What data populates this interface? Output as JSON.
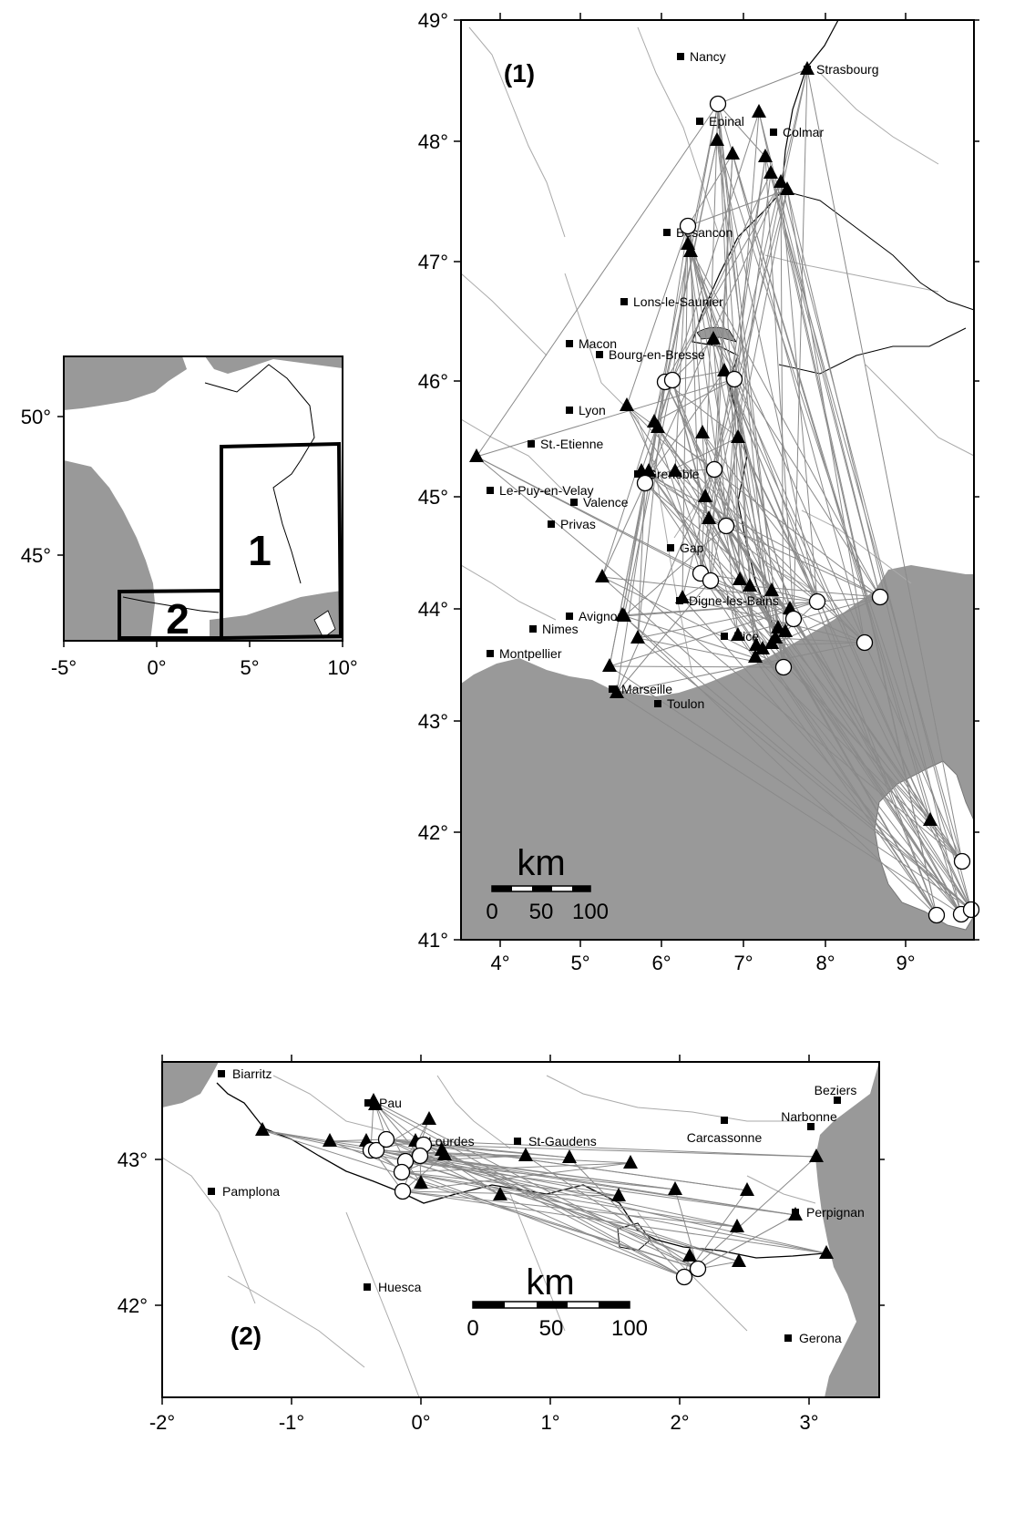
{
  "overview": {
    "lon_ticks": [
      "-5°",
      "0°",
      "5°",
      "10°"
    ],
    "lat_ticks": [
      "50°",
      "45°"
    ],
    "box1_label": "1",
    "box2_label": "2"
  },
  "panel1": {
    "label": "(1)",
    "lon_ticks": [
      "4°",
      "5°",
      "6°",
      "7°",
      "8°",
      "9°"
    ],
    "lat_ticks": [
      "49°",
      "48°",
      "47°",
      "46°",
      "45°",
      "44°",
      "43°",
      "42°",
      "41°"
    ],
    "scale": {
      "unit": "km",
      "ticks": [
        "0",
        "50",
        "100"
      ]
    },
    "cities": [
      {
        "name": "Nancy"
      },
      {
        "name": "Strasbourg"
      },
      {
        "name": "Epinal"
      },
      {
        "name": "Colmar"
      },
      {
        "name": "Besancon"
      },
      {
        "name": "Lons-le-Saunier"
      },
      {
        "name": "Macon"
      },
      {
        "name": "Bourg-en-Bresse"
      },
      {
        "name": "Lyon"
      },
      {
        "name": "St.-Etienne"
      },
      {
        "name": "Le-Puy-en-Velay"
      },
      {
        "name": "Valence"
      },
      {
        "name": "Grenoble"
      },
      {
        "name": "Privas"
      },
      {
        "name": "Gap"
      },
      {
        "name": "Digne-les-Bains"
      },
      {
        "name": "Avignon"
      },
      {
        "name": "Nimes"
      },
      {
        "name": "Montpellier"
      },
      {
        "name": "Nice"
      },
      {
        "name": "Marseille"
      },
      {
        "name": "Toulon"
      }
    ]
  },
  "panel2": {
    "label": "(2)",
    "lon_ticks": [
      "-2°",
      "-1°",
      "0°",
      "1°",
      "2°",
      "3°"
    ],
    "lat_ticks": [
      "43°",
      "42°"
    ],
    "scale": {
      "unit": "km",
      "ticks": [
        "0",
        "50",
        "100"
      ]
    },
    "cities": [
      {
        "name": "Biarritz"
      },
      {
        "name": "Pau"
      },
      {
        "name": "Lourdes"
      },
      {
        "name": "St-Gaudens"
      },
      {
        "name": "Carcassonne"
      },
      {
        "name": "Beziers"
      },
      {
        "name": "Narbonne"
      },
      {
        "name": "Pamplona"
      },
      {
        "name": "Perpignan"
      },
      {
        "name": "Huesca"
      },
      {
        "name": "Gerona"
      }
    ]
  },
  "colors": {
    "land": "#ffffff",
    "sea": "#999999",
    "river": "#aaaaaa",
    "path": "#888888",
    "marker": "#000000"
  }
}
